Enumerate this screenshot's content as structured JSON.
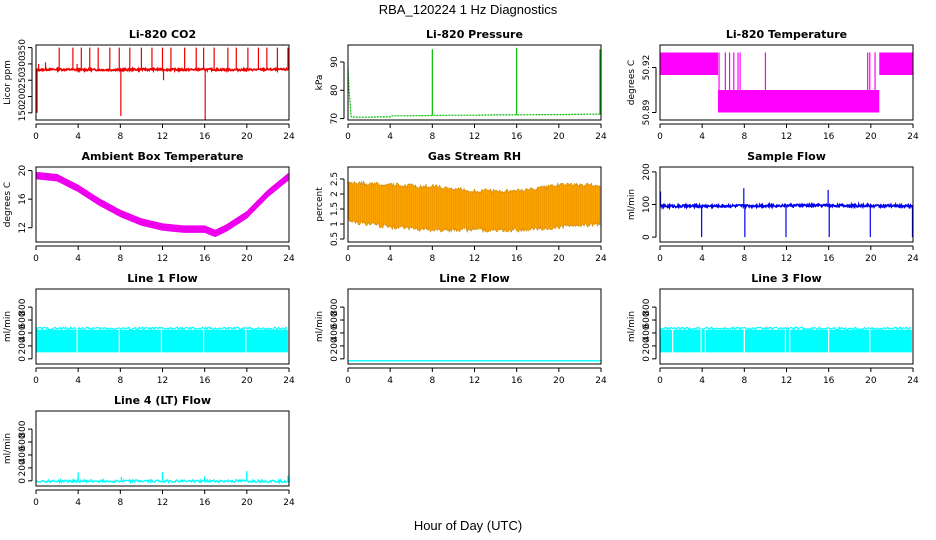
{
  "figure": {
    "title": "RBA_120224  1 Hz Diagnostics",
    "xlabel": "Hour of Day (UTC)"
  },
  "chart_data": [
    {
      "id": "co2",
      "type": "line",
      "title": "Li-820 CO2",
      "ylabel": "Licor ppm",
      "color": "#ee0000",
      "xlim": [
        0,
        24
      ],
      "xticks": [
        0,
        4,
        8,
        12,
        16,
        20,
        24
      ],
      "ylim": [
        128,
        358
      ],
      "yticks": [
        150,
        200,
        250,
        300,
        350
      ],
      "series": [
        {
          "name": "CO2",
          "x": [
            0,
            0.2,
            1,
            2,
            4,
            6,
            8,
            10,
            12,
            14,
            16,
            18,
            20,
            22,
            24
          ],
          "values": [
            280,
            282,
            283,
            283,
            282,
            282,
            282,
            283,
            283,
            282,
            283,
            282,
            282,
            283,
            283
          ]
        }
      ],
      "spikes": [
        [
          0.1,
          150
        ],
        [
          0.25,
          300
        ],
        [
          0.9,
          305
        ],
        [
          2.2,
          350
        ],
        [
          3.5,
          350
        ],
        [
          3.9,
          300
        ],
        [
          4.3,
          350
        ],
        [
          5.1,
          350
        ],
        [
          5.9,
          350
        ],
        [
          7.0,
          350
        ],
        [
          7.9,
          350
        ],
        [
          8.05,
          140
        ],
        [
          8.9,
          350
        ],
        [
          10.0,
          350
        ],
        [
          11.0,
          350
        ],
        [
          12.0,
          350
        ],
        [
          12.1,
          250
        ],
        [
          12.8,
          350
        ],
        [
          14.1,
          350
        ],
        [
          15.2,
          350
        ],
        [
          15.9,
          350
        ],
        [
          16.05,
          128
        ],
        [
          16.9,
          350
        ],
        [
          18.2,
          350
        ],
        [
          19.0,
          350
        ],
        [
          20.1,
          350
        ],
        [
          21.1,
          350
        ],
        [
          21.9,
          350
        ],
        [
          22.9,
          350
        ],
        [
          23.9,
          350
        ]
      ]
    },
    {
      "id": "pressure",
      "type": "line",
      "title": "Li-820 Pressure",
      "ylabel": "kPa",
      "color": "#00bb00",
      "xlim": [
        0,
        24
      ],
      "xticks": [
        0,
        4,
        8,
        12,
        16,
        20,
        24
      ],
      "ylim": [
        69.5,
        96
      ],
      "yticks": [
        70,
        80,
        90
      ],
      "series": [
        {
          "name": "Pressure",
          "x": [
            0,
            0.1,
            0.3,
            1,
            2,
            3,
            4,
            4.2,
            6,
            8,
            10,
            12,
            14,
            16,
            18,
            20,
            22,
            24
          ],
          "values": [
            88,
            80,
            70.6,
            70.5,
            70.5,
            70.6,
            70.6,
            71.0,
            71.0,
            71.1,
            71.2,
            71.2,
            71.3,
            71.3,
            71.4,
            71.4,
            71.5,
            71.6
          ]
        }
      ],
      "spikes": [
        [
          8.0,
          94.5
        ],
        [
          16.0,
          95
        ],
        [
          23.9,
          94.5
        ]
      ]
    },
    {
      "id": "licor_temp",
      "type": "area",
      "title": "Li-820 Temperature",
      "ylabel": "degrees C",
      "color": "#ff00ff",
      "xlim": [
        0,
        24
      ],
      "xticks": [
        0,
        4,
        8,
        12,
        16,
        20,
        24
      ],
      "ylim": [
        50.885,
        50.935
      ],
      "yticks": [
        50.89,
        50.92
      ],
      "bands": [
        [
          0,
          5.5,
          50.915,
          50.93
        ],
        [
          5.5,
          20.8,
          50.89,
          50.905
        ],
        [
          20.8,
          24,
          50.915,
          50.93
        ]
      ],
      "lines_x": [
        5.6,
        6.2,
        6.6,
        7.0,
        7.4,
        7.6,
        10.0,
        19.7,
        19.9,
        20.4
      ]
    },
    {
      "id": "box_temp",
      "type": "area",
      "title": "Ambient Box Temperature",
      "ylabel": "degrees C",
      "color": "#ee00ee",
      "xlim": [
        0,
        24
      ],
      "xticks": [
        0,
        4,
        8,
        12,
        16,
        20,
        24
      ],
      "ylim": [
        10,
        20.5
      ],
      "yticks": [
        12,
        16,
        20
      ],
      "series": [
        {
          "name": "Temp",
          "x": [
            0,
            2,
            4,
            6,
            8,
            10,
            12,
            14,
            16,
            17,
            18,
            20,
            22,
            24
          ],
          "values": [
            19.3,
            19.0,
            17.5,
            15.6,
            14.0,
            12.8,
            12.1,
            11.8,
            11.8,
            11.2,
            11.9,
            13.8,
            16.8,
            19.2
          ]
        }
      ],
      "band_width": 0.9
    },
    {
      "id": "rh",
      "type": "area",
      "title": "Gas Stream RH",
      "ylabel": "percent",
      "color": "#ffa500",
      "xlim": [
        0,
        24
      ],
      "xticks": [
        0,
        4,
        8,
        12,
        16,
        20,
        24
      ],
      "ylim": [
        0.4,
        2.9
      ],
      "yticks": [
        0.5,
        1.0,
        1.5,
        2.0,
        2.5
      ],
      "upper": {
        "x": [
          0,
          4,
          8,
          12,
          16,
          20,
          24
        ],
        "values": [
          2.4,
          2.3,
          2.25,
          2.1,
          2.1,
          2.3,
          2.3
        ]
      },
      "lower": {
        "x": [
          0,
          4,
          8,
          12,
          16,
          20,
          24
        ],
        "values": [
          1.1,
          0.9,
          0.8,
          0.8,
          0.8,
          0.9,
          1.0
        ]
      }
    },
    {
      "id": "sample_flow",
      "type": "line",
      "title": "Sample Flow",
      "ylabel": "ml/min",
      "color": "#0000ee",
      "xlim": [
        0,
        24
      ],
      "xticks": [
        0,
        4,
        8,
        12,
        16,
        20,
        24
      ],
      "ylim": [
        -15,
        215
      ],
      "yticks": [
        0,
        100,
        200
      ],
      "series": [
        {
          "name": "Flow",
          "x": [
            0,
            4,
            8,
            12,
            16,
            20,
            24
          ],
          "values": [
            95,
            95,
            96,
            97,
            97,
            96,
            95
          ]
        }
      ],
      "spikes": [
        [
          0.05,
          140
        ],
        [
          3.95,
          0
        ],
        [
          7.95,
          150
        ],
        [
          8.05,
          0
        ],
        [
          11.95,
          0
        ],
        [
          15.95,
          145
        ],
        [
          16.05,
          0
        ],
        [
          19.95,
          0
        ],
        [
          23.95,
          0
        ]
      ]
    },
    {
      "id": "line1",
      "type": "area",
      "title": "Line 1 Flow",
      "ylabel": "ml/min",
      "color": "#00ffff",
      "xlim": [
        0,
        24
      ],
      "xticks": [
        0,
        4,
        8,
        12,
        16,
        20,
        24
      ],
      "ylim": [
        -80,
        1080
      ],
      "yticks": [
        0,
        200,
        400,
        600,
        800
      ],
      "band": [
        100,
        450
      ],
      "gaps": [
        3.9,
        7.9,
        11.9,
        15.9,
        19.9
      ]
    },
    {
      "id": "line2",
      "type": "line",
      "title": "Line 2 Flow",
      "ylabel": "ml/min",
      "color": "#00ffff",
      "xlim": [
        0,
        24
      ],
      "xticks": [
        0,
        4,
        8,
        12,
        16,
        20,
        24
      ],
      "ylim": [
        -80,
        1080
      ],
      "yticks": [
        0,
        200,
        400,
        600,
        800
      ],
      "series": [
        {
          "name": "Flow",
          "x": [
            0,
            24
          ],
          "values": [
            -30,
            -30
          ]
        }
      ]
    },
    {
      "id": "line3",
      "type": "area",
      "title": "Line 3 Flow",
      "ylabel": "ml/min",
      "color": "#00ffff",
      "xlim": [
        0,
        24
      ],
      "xticks": [
        0,
        4,
        8,
        12,
        16,
        20,
        24
      ],
      "ylim": [
        -80,
        1080
      ],
      "yticks": [
        0,
        200,
        400,
        600,
        800
      ],
      "band": [
        100,
        450
      ],
      "gaps": [
        1.2,
        3.9,
        4.3,
        8.0,
        11.9,
        12.3,
        16.0,
        19.9
      ]
    },
    {
      "id": "line4",
      "type": "line",
      "title": "Line 4 (LT) Flow",
      "ylabel": "ml/min",
      "color": "#00ffff",
      "xlim": [
        0,
        24
      ],
      "xticks": [
        0,
        4,
        8,
        12,
        16,
        20,
        24
      ],
      "ylim": [
        -80,
        1080
      ],
      "yticks": [
        0,
        200,
        400,
        600,
        800
      ],
      "series": [
        {
          "name": "Flow",
          "x": [
            0,
            24
          ],
          "values": [
            0,
            0
          ]
        }
      ],
      "spikes": [
        [
          4.0,
          130
        ],
        [
          8.1,
          60
        ],
        [
          12.0,
          140
        ],
        [
          16.0,
          70
        ],
        [
          20.0,
          150
        ],
        [
          23.9,
          80
        ]
      ]
    }
  ]
}
